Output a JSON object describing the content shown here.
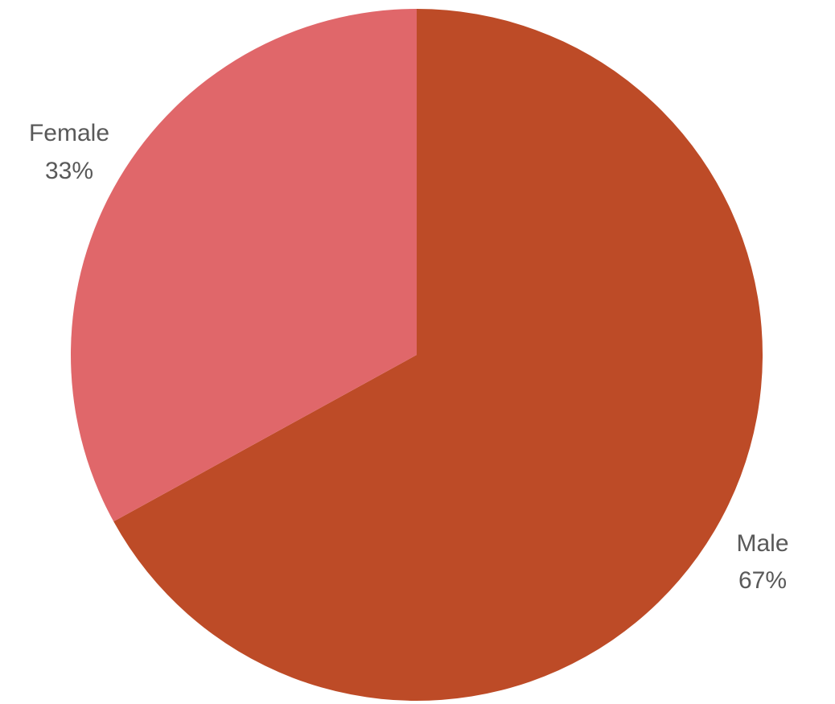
{
  "chart_data": {
    "type": "pie",
    "title": "",
    "legend": "none",
    "slices": [
      {
        "label": "Male",
        "value": 67,
        "value_label": "67%",
        "color": "#bd4b27"
      },
      {
        "label": "Female",
        "value": 33,
        "value_label": "33%",
        "color": "#e0676a"
      }
    ]
  }
}
